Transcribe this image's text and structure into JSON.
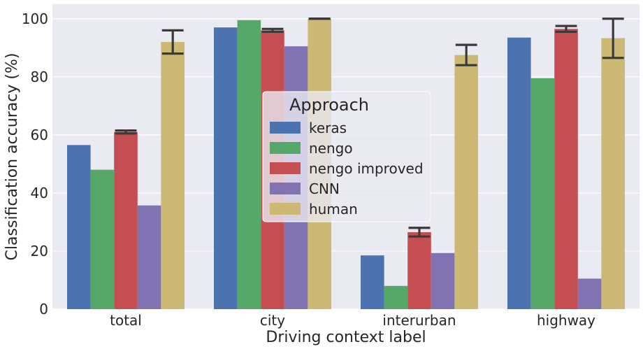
{
  "chart_data": {
    "type": "bar",
    "xlabel": "Driving context label",
    "ylabel": "Classification accuracy (%)",
    "categories": [
      "total",
      "city",
      "interurban",
      "highway"
    ],
    "ylim": [
      0,
      105
    ],
    "yticks": [
      0,
      20,
      40,
      60,
      80,
      100
    ],
    "grid": true,
    "legend": {
      "title": "Approach",
      "placement": "center"
    },
    "series": [
      {
        "name": "keras",
        "color": "#4C72B0",
        "values": [
          56.5,
          97.0,
          18.5,
          93.5
        ]
      },
      {
        "name": "nengo",
        "color": "#55A868",
        "values": [
          48.0,
          99.5,
          8.0,
          79.5
        ]
      },
      {
        "name": "nengo improved",
        "color": "#C44E52",
        "values": [
          61.0,
          96.0,
          26.5,
          96.5
        ],
        "errors": [
          [
            60.5,
            61.5
          ],
          [
            95.5,
            96.5
          ],
          [
            25.0,
            28.0
          ],
          [
            95.5,
            97.5
          ]
        ]
      },
      {
        "name": "CNN",
        "color": "#8172B2",
        "values": [
          35.7,
          90.5,
          19.3,
          10.5
        ]
      },
      {
        "name": "human",
        "color": "#CCB974",
        "values": [
          92.0,
          100.0,
          87.5,
          93.3
        ],
        "errors": [
          [
            88.0,
            96.0
          ],
          [
            100.0,
            100.0
          ],
          [
            84.0,
            91.0
          ],
          [
            86.5,
            100.0
          ]
        ]
      }
    ]
  }
}
